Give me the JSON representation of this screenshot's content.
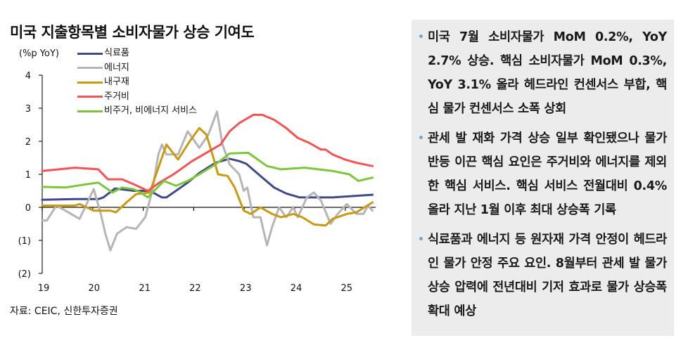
{
  "chart_data": {
    "type": "line",
    "title": "미국 지출항목별 소비자물가 상승 기여도",
    "ylabel": "(%p YoY)",
    "ylim": [
      -2,
      4
    ],
    "xlim": [
      19,
      25.6
    ],
    "yticks": [
      4,
      3,
      2,
      1,
      0,
      -1,
      -2
    ],
    "ytick_labels": [
      "4",
      "3",
      "2",
      "1",
      "0",
      "(1)",
      "(2)"
    ],
    "xticks": [
      19,
      20,
      21,
      22,
      23,
      24,
      25
    ],
    "xtick_labels": [
      "19",
      "20",
      "21",
      "22",
      "23",
      "24",
      "25"
    ],
    "legend_position": "top-left",
    "grid": false,
    "series": [
      {
        "name": "식료품",
        "color": "#3f4a86",
        "points": [
          [
            19.0,
            0.23
          ],
          [
            19.65,
            0.25
          ],
          [
            20.11,
            0.25
          ],
          [
            20.21,
            0.3
          ],
          [
            20.44,
            0.57
          ],
          [
            20.81,
            0.5
          ],
          [
            21.13,
            0.5
          ],
          [
            21.37,
            0.3
          ],
          [
            21.46,
            0.3
          ],
          [
            21.6,
            0.45
          ],
          [
            21.88,
            0.75
          ],
          [
            22.11,
            1.04
          ],
          [
            22.43,
            1.35
          ],
          [
            22.71,
            1.47
          ],
          [
            22.9,
            1.4
          ],
          [
            23.04,
            1.32
          ],
          [
            23.36,
            0.9
          ],
          [
            23.59,
            0.6
          ],
          [
            23.83,
            0.42
          ],
          [
            24.1,
            0.3
          ],
          [
            24.52,
            0.3
          ],
          [
            24.75,
            0.3
          ],
          [
            25.22,
            0.35
          ],
          [
            25.54,
            0.38
          ]
        ]
      },
      {
        "name": "에너지",
        "color": "#b5b5b5",
        "points": [
          [
            19.0,
            -0.4
          ],
          [
            19.09,
            -0.4
          ],
          [
            19.28,
            0.05
          ],
          [
            19.46,
            -0.1
          ],
          [
            19.74,
            -0.35
          ],
          [
            20.02,
            0.55
          ],
          [
            20.16,
            -0.2
          ],
          [
            20.25,
            -0.8
          ],
          [
            20.35,
            -1.3
          ],
          [
            20.48,
            -0.8
          ],
          [
            20.67,
            -0.6
          ],
          [
            20.86,
            -0.65
          ],
          [
            21.04,
            -0.3
          ],
          [
            21.18,
            0.5
          ],
          [
            21.3,
            1.6
          ],
          [
            21.37,
            1.9
          ],
          [
            21.46,
            1.6
          ],
          [
            21.69,
            1.6
          ],
          [
            21.88,
            2.3
          ],
          [
            22.11,
            1.8
          ],
          [
            22.29,
            2.2
          ],
          [
            22.46,
            2.9
          ],
          [
            22.57,
            1.9
          ],
          [
            22.71,
            1.3
          ],
          [
            22.9,
            1.0
          ],
          [
            22.99,
            0.5
          ],
          [
            23.06,
            0.6
          ],
          [
            23.18,
            -0.3
          ],
          [
            23.32,
            -0.3
          ],
          [
            23.45,
            -1.15
          ],
          [
            23.55,
            -0.6
          ],
          [
            23.69,
            0.0
          ],
          [
            23.83,
            -0.3
          ],
          [
            23.97,
            0.0
          ],
          [
            24.06,
            -0.3
          ],
          [
            24.24,
            0.3
          ],
          [
            24.38,
            0.45
          ],
          [
            24.52,
            0.2
          ],
          [
            24.71,
            -0.5
          ],
          [
            24.85,
            -0.2
          ],
          [
            25.03,
            0.1
          ],
          [
            25.22,
            -0.2
          ],
          [
            25.36,
            -0.2
          ],
          [
            25.45,
            0.05
          ],
          [
            25.54,
            -0.1
          ]
        ]
      },
      {
        "name": "내구재",
        "color": "#c99a10",
        "points": [
          [
            19.0,
            0.05
          ],
          [
            19.65,
            0.05
          ],
          [
            19.74,
            0.1
          ],
          [
            20.02,
            -0.1
          ],
          [
            20.35,
            -0.1
          ],
          [
            20.46,
            -0.15
          ],
          [
            20.67,
            0.15
          ],
          [
            20.86,
            0.4
          ],
          [
            21.13,
            0.45
          ],
          [
            21.46,
            1.9
          ],
          [
            21.69,
            1.45
          ],
          [
            21.92,
            2.0
          ],
          [
            22.11,
            2.4
          ],
          [
            22.25,
            2.2
          ],
          [
            22.39,
            1.5
          ],
          [
            22.48,
            1.0
          ],
          [
            22.67,
            0.95
          ],
          [
            22.81,
            0.6
          ],
          [
            22.99,
            -0.1
          ],
          [
            23.13,
            -0.2
          ],
          [
            23.32,
            0.0
          ],
          [
            23.55,
            -0.2
          ],
          [
            23.73,
            -0.3
          ],
          [
            23.97,
            -0.2
          ],
          [
            24.15,
            -0.3
          ],
          [
            24.38,
            -0.52
          ],
          [
            24.61,
            -0.55
          ],
          [
            24.75,
            -0.35
          ],
          [
            25.03,
            -0.2
          ],
          [
            25.22,
            -0.15
          ],
          [
            25.54,
            0.15
          ]
        ]
      },
      {
        "name": "주거비",
        "color": "#f25454",
        "points": [
          [
            19.0,
            1.1
          ],
          [
            19.65,
            1.2
          ],
          [
            20.11,
            1.15
          ],
          [
            20.3,
            0.85
          ],
          [
            20.58,
            0.85
          ],
          [
            20.81,
            0.7
          ],
          [
            21.09,
            0.5
          ],
          [
            21.32,
            0.75
          ],
          [
            21.6,
            1.0
          ],
          [
            21.97,
            1.4
          ],
          [
            22.25,
            1.65
          ],
          [
            22.53,
            1.9
          ],
          [
            22.71,
            2.3
          ],
          [
            22.9,
            2.55
          ],
          [
            23.18,
            2.8
          ],
          [
            23.36,
            2.8
          ],
          [
            23.59,
            2.65
          ],
          [
            23.83,
            2.4
          ],
          [
            24.06,
            2.1
          ],
          [
            24.29,
            1.95
          ],
          [
            24.52,
            1.75
          ],
          [
            24.61,
            1.75
          ],
          [
            24.75,
            1.6
          ],
          [
            24.99,
            1.45
          ],
          [
            25.22,
            1.35
          ],
          [
            25.54,
            1.25
          ]
        ]
      },
      {
        "name": "비주거, 비에너지 서비스",
        "color": "#7dc63b",
        "points": [
          [
            19.0,
            0.62
          ],
          [
            19.46,
            0.6
          ],
          [
            19.88,
            0.7
          ],
          [
            20.11,
            0.75
          ],
          [
            20.39,
            0.45
          ],
          [
            20.58,
            0.6
          ],
          [
            20.81,
            0.55
          ],
          [
            20.95,
            0.45
          ],
          [
            21.09,
            0.3
          ],
          [
            21.41,
            0.8
          ],
          [
            21.65,
            0.65
          ],
          [
            21.88,
            0.8
          ],
          [
            22.11,
            1.0
          ],
          [
            22.43,
            1.3
          ],
          [
            22.71,
            1.63
          ],
          [
            23.08,
            1.65
          ],
          [
            23.45,
            1.25
          ],
          [
            23.73,
            1.15
          ],
          [
            24.2,
            1.2
          ],
          [
            24.75,
            1.1
          ],
          [
            25.08,
            1.0
          ],
          [
            25.26,
            0.8
          ],
          [
            25.54,
            0.9
          ]
        ]
      }
    ]
  },
  "source": "자료: CEIC, 신한투자증권",
  "panel": {
    "bullet_color": "#7fa3c8",
    "bullets": [
      "미국 7월 소비자물가 MoM 0.2%, YoY 2.7% 상승. 핵심 소비자물가 MoM 0.3%, YoY 3.1% 올라 헤드라인 컨센서스 부합, 핵심 물가 컨센서스 소폭 상회",
      "관세 발 재화 가격 상승 일부 확인됐으나 물가 반등 이끈 핵심 요인은 주거비와 에너지를 제외한 핵심 서비스. 핵심 서비스 전월대비 0.4% 올라 지난 1월 이후 최대 상승폭 기록",
      "식료품과 에너지 등 원자재 가격 안정이 헤드라인 물가 안정 주요 요인. 8월부터 관세 발 물가 상승 압력에 전년대비 기저 효과로 물가 상승폭 확대 예상"
    ]
  }
}
